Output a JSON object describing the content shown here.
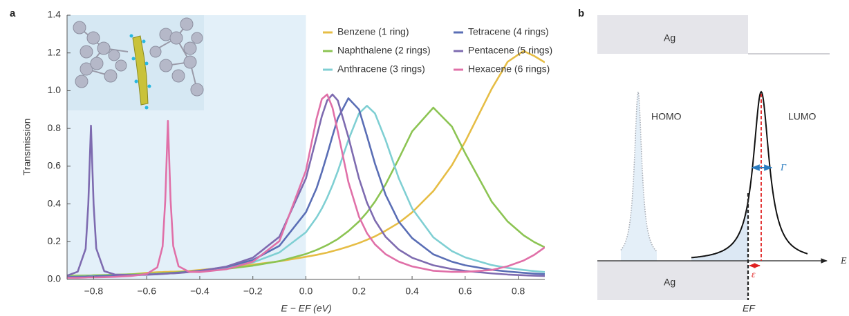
{
  "chart_data": {
    "type": "line",
    "panel_label": "a",
    "xlabel": "E − EF (eV)",
    "ylabel": "Transmission",
    "xlim": [
      -0.9,
      0.9
    ],
    "ylim": [
      0,
      1.4
    ],
    "xticks": [
      {
        "value": -0.8,
        "label": "−0.8"
      },
      {
        "value": -0.6,
        "label": "−0.6"
      },
      {
        "value": -0.4,
        "label": "−0.4"
      },
      {
        "value": -0.2,
        "label": "−0.2"
      },
      {
        "value": 0,
        "label": "0.0"
      },
      0.2,
      0.4,
      0.6,
      0.8
    ],
    "yticks": [
      {
        "value": 0,
        "label": "0.0"
      },
      0.2,
      0.4,
      0.6,
      0.8,
      {
        "value": 1,
        "label": "1.0"
      },
      1.2,
      1.4
    ],
    "shade": {
      "from": -0.9,
      "to": 0,
      "color": "#e3f0f9"
    },
    "x": [
      -0.9,
      -0.86,
      -0.83,
      -0.82,
      -0.81,
      -0.8,
      -0.79,
      -0.76,
      -0.72,
      -0.66,
      -0.6,
      -0.56,
      -0.54,
      -0.53,
      -0.52,
      -0.51,
      -0.5,
      -0.48,
      -0.44,
      -0.4,
      -0.3,
      -0.2,
      -0.1,
      0,
      0.04,
      0.06,
      0.08,
      0.1,
      0.12,
      0.16,
      0.2,
      0.23,
      0.26,
      0.3,
      0.35,
      0.4,
      0.48,
      0.55,
      0.6,
      0.7,
      0.76,
      0.82,
      0.86,
      0.9
    ],
    "series": [
      {
        "name": "Benzene (1 ring)",
        "color": "#e6bd45",
        "values": [
          0.02,
          0.02,
          0.02,
          0.02,
          0.02,
          0.02,
          0.02,
          0.022,
          0.024,
          0.027,
          0.035,
          0.038,
          0.039,
          0.04,
          0.04,
          0.041,
          0.041,
          0.042,
          0.045,
          0.05,
          0.063,
          0.079,
          0.096,
          0.12,
          0.13,
          0.136,
          0.142,
          0.15,
          0.157,
          0.174,
          0.193,
          0.21,
          0.228,
          0.258,
          0.3,
          0.355,
          0.468,
          0.605,
          0.73,
          1.01,
          1.153,
          1.21,
          1.184,
          1.15
        ]
      },
      {
        "name": "Naphthalene (2 rings)",
        "color": "#8cc453",
        "values": [
          0.019,
          0.02,
          0.021,
          0.021,
          0.021,
          0.022,
          0.022,
          0.023,
          0.025,
          0.027,
          0.03,
          0.032,
          0.034,
          0.034,
          0.035,
          0.036,
          0.036,
          0.038,
          0.041,
          0.045,
          0.056,
          0.073,
          0.097,
          0.135,
          0.156,
          0.169,
          0.182,
          0.198,
          0.214,
          0.256,
          0.307,
          0.355,
          0.412,
          0.503,
          0.64,
          0.784,
          0.91,
          0.81,
          0.669,
          0.412,
          0.307,
          0.234,
          0.198,
          0.17
        ]
      },
      {
        "name": "Anthracene (3 rings)",
        "color": "#7fcfd3",
        "values": [
          0.014,
          0.015,
          0.016,
          0.016,
          0.017,
          0.017,
          0.017,
          0.018,
          0.02,
          0.023,
          0.026,
          0.029,
          0.03,
          0.031,
          0.032,
          0.032,
          0.033,
          0.035,
          0.039,
          0.044,
          0.061,
          0.09,
          0.143,
          0.25,
          0.328,
          0.376,
          0.433,
          0.499,
          0.573,
          0.739,
          0.88,
          0.92,
          0.88,
          0.739,
          0.535,
          0.376,
          0.223,
          0.15,
          0.117,
          0.076,
          0.061,
          0.05,
          0.044,
          0.039
        ]
      },
      {
        "name": "Tetracene (4 rings)",
        "color": "#5a6eb5",
        "values": [
          0.013,
          0.014,
          0.015,
          0.016,
          0.016,
          0.016,
          0.017,
          0.018,
          0.019,
          0.022,
          0.026,
          0.028,
          0.03,
          0.031,
          0.032,
          0.033,
          0.034,
          0.036,
          0.04,
          0.046,
          0.066,
          0.103,
          0.178,
          0.356,
          0.483,
          0.569,
          0.662,
          0.76,
          0.853,
          0.96,
          0.9,
          0.76,
          0.614,
          0.449,
          0.306,
          0.219,
          0.133,
          0.094,
          0.075,
          0.051,
          0.042,
          0.035,
          0.031,
          0.028
        ]
      },
      {
        "name": "Pentacene (5 rings)",
        "color": "#7e6bb0",
        "values": [
          0.02,
          0.041,
          0.162,
          0.398,
          0.815,
          0.398,
          0.164,
          0.044,
          0.026,
          0.023,
          0.025,
          0.027,
          0.029,
          0.03,
          0.031,
          0.032,
          0.032,
          0.034,
          0.039,
          0.045,
          0.068,
          0.115,
          0.226,
          0.535,
          0.754,
          0.865,
          0.948,
          0.98,
          0.948,
          0.754,
          0.535,
          0.407,
          0.313,
          0.226,
          0.158,
          0.115,
          0.075,
          0.055,
          0.045,
          0.032,
          0.026,
          0.022,
          0.02,
          0.018
        ]
      },
      {
        "name": "Hexacene (6 rings)",
        "color": "#e070a8",
        "values": [
          0.009,
          0.009,
          0.01,
          0.011,
          0.011,
          0.011,
          0.011,
          0.012,
          0.014,
          0.018,
          0.029,
          0.064,
          0.175,
          0.419,
          0.84,
          0.42,
          0.177,
          0.07,
          0.04,
          0.039,
          0.054,
          0.094,
          0.203,
          0.577,
          0.852,
          0.956,
          0.98,
          0.91,
          0.784,
          0.516,
          0.332,
          0.245,
          0.186,
          0.134,
          0.094,
          0.069,
          0.046,
          0.04,
          0.04,
          0.05,
          0.07,
          0.1,
          0.13,
          0.17
        ]
      }
    ]
  },
  "diagram": {
    "panel_label": "b",
    "top_metal": "Ag",
    "bottom_metal": "Ag",
    "homo": "HOMO",
    "lumo": "LUMO",
    "gamma": "Γ",
    "epsilon": "ε",
    "energy_axis": "E",
    "fermi_level": "EF"
  }
}
